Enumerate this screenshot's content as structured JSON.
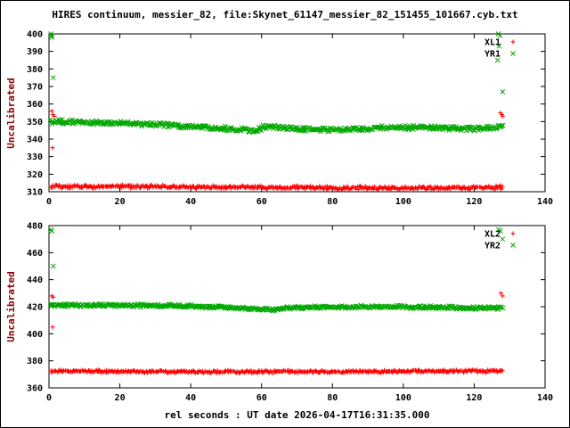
{
  "title": "HIRES continuum, messier_82, file:Skynet_61147_messier_82_151455_101667.cyb.txt",
  "xlabel": "rel seconds : UT date 2026-04-17T16:31:35.000",
  "colors": {
    "red": "#ff0000",
    "green": "#00a800",
    "axis": "#000000",
    "ylabel": "#8b0000"
  },
  "chart_data": [
    {
      "type": "scatter",
      "ylabel": "Uncalibrated",
      "xlim": [
        0,
        140
      ],
      "ylim": [
        310,
        400
      ],
      "xtick_step": 20,
      "ytick_step": 10,
      "grid": false,
      "legend_position": "top-right",
      "legend": [
        {
          "label": "XL1",
          "marker": "plus",
          "color": "#ff0000"
        },
        {
          "label": "YR1",
          "marker": "cross",
          "color": "#00a800"
        }
      ],
      "series": [
        {
          "name": "YR1",
          "marker": "cross",
          "color": "#00a800",
          "n": 520,
          "x0": 0.5,
          "x1": 128,
          "noise": 1.5,
          "trend": [
            [
              0.5,
              350
            ],
            [
              10,
              349.5
            ],
            [
              30,
              348.5
            ],
            [
              50,
              346
            ],
            [
              58,
              345
            ],
            [
              62,
              347.5
            ],
            [
              70,
              345.5
            ],
            [
              85,
              345.5
            ],
            [
              95,
              346.5
            ],
            [
              110,
              346.5
            ],
            [
              120,
              346
            ],
            [
              128,
              347
            ]
          ],
          "outliers": [
            [
              0.5,
              400
            ],
            [
              0.7,
              399
            ],
            [
              0.9,
              398
            ],
            [
              1.2,
              375
            ],
            [
              126.8,
              400
            ],
            [
              127.3,
              399
            ],
            [
              127.0,
              393
            ],
            [
              126.6,
              385
            ],
            [
              128,
              367
            ]
          ]
        },
        {
          "name": "XL1",
          "marker": "plus",
          "color": "#ff0000",
          "n": 480,
          "x0": 0.5,
          "x1": 128,
          "noise": 1.2,
          "trend": [
            [
              0.5,
              313
            ],
            [
              20,
              313
            ],
            [
              60,
              312.5
            ],
            [
              100,
              312
            ],
            [
              128,
              312.5
            ]
          ],
          "outliers": [
            [
              0.8,
              356
            ],
            [
              1.1,
              354
            ],
            [
              1.5,
              353
            ],
            [
              1.0,
              335
            ],
            [
              127.4,
              355
            ],
            [
              127.8,
              354
            ],
            [
              128,
              353
            ]
          ]
        }
      ]
    },
    {
      "type": "scatter",
      "ylabel": "Uncalibrated",
      "xlim": [
        0,
        140
      ],
      "ylim": [
        360,
        480
      ],
      "xtick_step": 20,
      "ytick_step": 20,
      "grid": false,
      "legend_position": "top-right",
      "legend": [
        {
          "label": "XL2",
          "marker": "plus",
          "color": "#ff0000"
        },
        {
          "label": "YR2",
          "marker": "cross",
          "color": "#00a800"
        }
      ],
      "series": [
        {
          "name": "YR2",
          "marker": "cross",
          "color": "#00a800",
          "n": 520,
          "x0": 0.5,
          "x1": 128,
          "noise": 1.4,
          "trend": [
            [
              0.5,
              421
            ],
            [
              20,
              421
            ],
            [
              40,
              420.5
            ],
            [
              55,
              419
            ],
            [
              62,
              418
            ],
            [
              70,
              419.5
            ],
            [
              90,
              420
            ],
            [
              110,
              419.5
            ],
            [
              128,
              419
            ]
          ],
          "outliers": [
            [
              0.5,
              477
            ],
            [
              0.8,
              476
            ],
            [
              1.2,
              450
            ],
            [
              126.9,
              477
            ],
            [
              127.4,
              476
            ],
            [
              128,
              470
            ]
          ]
        },
        {
          "name": "XL2",
          "marker": "plus",
          "color": "#ff0000",
          "n": 480,
          "x0": 0.5,
          "x1": 128,
          "noise": 1.2,
          "trend": [
            [
              0.5,
              372.5
            ],
            [
              40,
              372
            ],
            [
              80,
              372
            ],
            [
              128,
              372.5
            ]
          ],
          "outliers": [
            [
              0.8,
              428
            ],
            [
              1.2,
              427
            ],
            [
              1.0,
              405
            ],
            [
              127.5,
              430
            ],
            [
              128,
              428
            ]
          ]
        }
      ]
    }
  ]
}
